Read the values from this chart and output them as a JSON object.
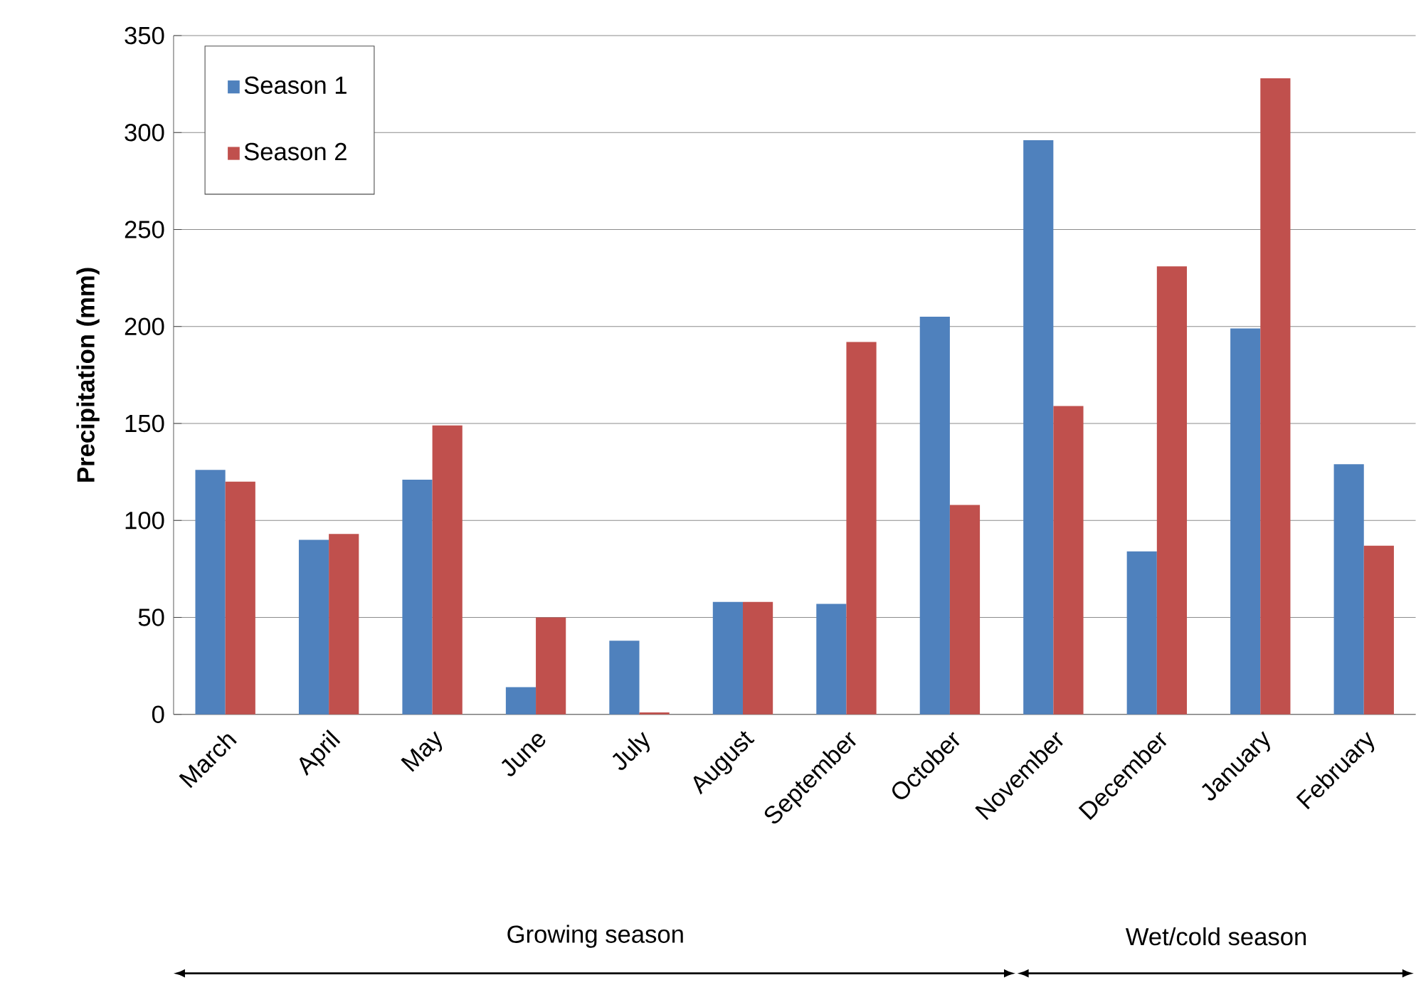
{
  "chart_data": {
    "type": "bar",
    "categories": [
      "March",
      "April",
      "May",
      "June",
      "July",
      "August",
      "September",
      "October",
      "November",
      "December",
      "January",
      "February"
    ],
    "series": [
      {
        "name": "Season 1",
        "color": "#4f81bd",
        "values": [
          126,
          90,
          121,
          14,
          38,
          58,
          57,
          205,
          296,
          84,
          199,
          129
        ]
      },
      {
        "name": "Season 2",
        "color": "#c0504d",
        "values": [
          120,
          93,
          149,
          50,
          1,
          58,
          192,
          108,
          159,
          231,
          328,
          87
        ]
      }
    ],
    "ylabel": "Precipitation (mm)",
    "ylim": [
      0,
      350
    ],
    "yticks": [
      0,
      50,
      100,
      150,
      200,
      250,
      300,
      350
    ],
    "grid": "y",
    "legend": "top left",
    "annotations": [
      "Growing season",
      "Wet/cold season"
    ]
  }
}
